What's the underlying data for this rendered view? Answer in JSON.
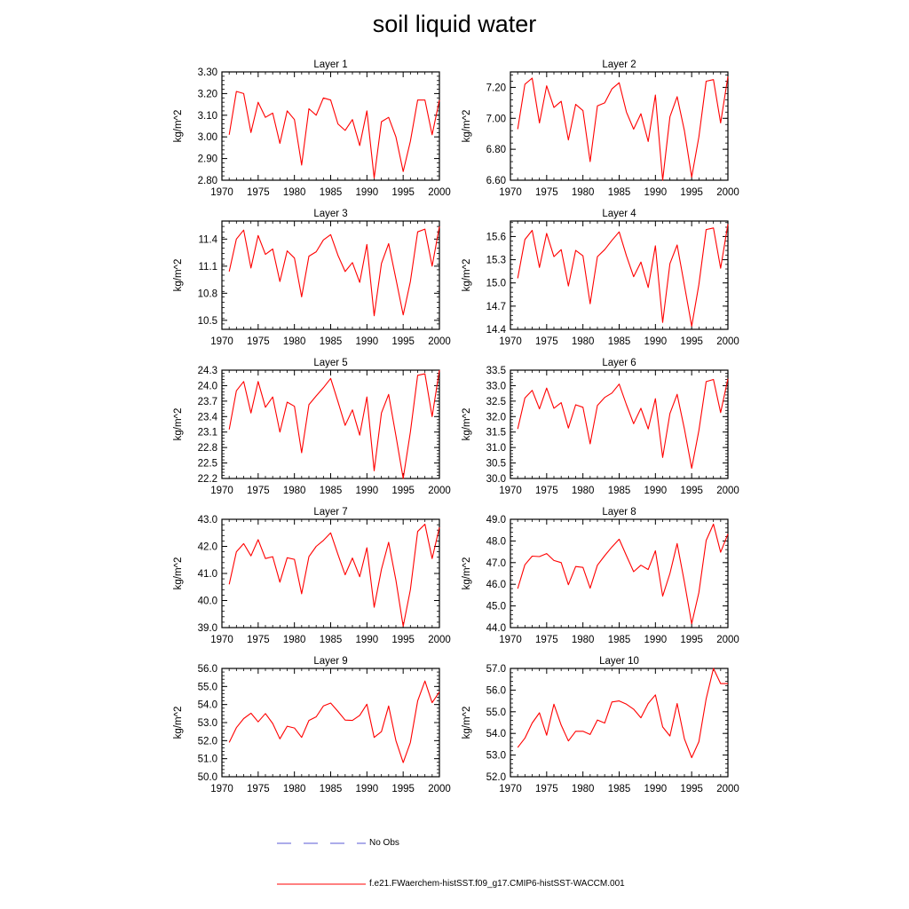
{
  "title": "soil liquid water",
  "legend": {
    "obs_label": "No Obs",
    "obs_color": "#5a5ad6",
    "model_label": "f.e21.FWaerchem-histSST.f09_g17.CMIP6-histSST-WACCM.001",
    "model_color": "#ff0000"
  },
  "chart_data": [
    {
      "type": "line",
      "title": "Layer 1",
      "ylabel": "kg/m^2",
      "xlabel": "",
      "xlim": [
        1970,
        2000
      ],
      "ylim": [
        2.8,
        3.3
      ],
      "xticks": [
        "1970",
        "1975",
        "1980",
        "1985",
        "1990",
        "1995",
        "2000"
      ],
      "yticks": [
        "2.80",
        "2.90",
        "3.00",
        "3.10",
        "3.20",
        "3.30"
      ],
      "series": [
        {
          "x": [
            1971,
            1972,
            1973,
            1974,
            1975,
            1976,
            1977,
            1978,
            1979,
            1980,
            1981,
            1982,
            1983,
            1984,
            1985,
            1986,
            1987,
            1988,
            1989,
            1990,
            1991,
            1992,
            1993,
            1994,
            1995,
            1996,
            1997,
            1998,
            1999,
            2000
          ],
          "values": [
            3.01,
            3.21,
            3.2,
            3.02,
            3.16,
            3.09,
            3.11,
            2.97,
            3.12,
            3.08,
            2.87,
            3.13,
            3.1,
            3.18,
            3.17,
            3.06,
            3.03,
            3.08,
            2.96,
            3.12,
            2.81,
            3.07,
            3.09,
            3.0,
            2.84,
            2.98,
            3.17,
            3.17,
            3.01,
            3.17
          ]
        }
      ]
    },
    {
      "type": "line",
      "title": "Layer 2",
      "ylabel": "kg/m^2",
      "xlabel": "",
      "xlim": [
        1970,
        2000
      ],
      "ylim": [
        6.6,
        7.3
      ],
      "xticks": [
        "1970",
        "1975",
        "1980",
        "1985",
        "1990",
        "1995",
        "2000"
      ],
      "yticks": [
        "6.60",
        "6.80",
        "7.00",
        "7.20"
      ],
      "series": [
        {
          "x": [
            1971,
            1972,
            1973,
            1974,
            1975,
            1976,
            1977,
            1978,
            1979,
            1980,
            1981,
            1982,
            1983,
            1984,
            1985,
            1986,
            1987,
            1988,
            1989,
            1990,
            1991,
            1992,
            1993,
            1994,
            1995,
            1996,
            1997,
            1998,
            1999,
            2000
          ],
          "values": [
            6.93,
            7.22,
            7.26,
            6.97,
            7.21,
            7.07,
            7.11,
            6.86,
            7.09,
            7.05,
            6.72,
            7.08,
            7.1,
            7.19,
            7.23,
            7.04,
            6.93,
            7.03,
            6.85,
            7.15,
            6.6,
            7.01,
            7.14,
            6.92,
            6.62,
            6.88,
            7.24,
            7.25,
            6.97,
            7.27
          ]
        }
      ]
    },
    {
      "type": "line",
      "title": "Layer 3",
      "ylabel": "kg/m^2",
      "xlabel": "",
      "xlim": [
        1970,
        2000
      ],
      "ylim": [
        10.4,
        11.6
      ],
      "xticks": [
        "1970",
        "1975",
        "1980",
        "1985",
        "1990",
        "1995",
        "2000"
      ],
      "yticks": [
        "10.5",
        "10.8",
        "11.1",
        "11.4"
      ],
      "series": [
        {
          "x": [
            1971,
            1972,
            1973,
            1974,
            1975,
            1976,
            1977,
            1978,
            1979,
            1980,
            1981,
            1982,
            1983,
            1984,
            1985,
            1986,
            1987,
            1988,
            1989,
            1990,
            1991,
            1992,
            1993,
            1994,
            1995,
            1996,
            1997,
            1998,
            1999,
            2000
          ],
          "values": [
            11.04,
            11.4,
            11.5,
            11.08,
            11.44,
            11.23,
            11.29,
            10.93,
            11.27,
            11.19,
            10.76,
            11.21,
            11.26,
            11.39,
            11.45,
            11.22,
            11.04,
            11.14,
            10.92,
            11.34,
            10.55,
            11.13,
            11.35,
            10.96,
            10.56,
            10.93,
            11.48,
            11.51,
            11.1,
            11.54
          ]
        }
      ]
    },
    {
      "type": "line",
      "title": "Layer 4",
      "ylabel": "kg/m^2",
      "xlabel": "",
      "xlim": [
        1970,
        2000
      ],
      "ylim": [
        14.4,
        15.8
      ],
      "xticks": [
        "1970",
        "1975",
        "1980",
        "1985",
        "1990",
        "1995",
        "2000"
      ],
      "yticks": [
        "14.4",
        "14.7",
        "15.0",
        "15.3",
        "15.6"
      ],
      "series": [
        {
          "x": [
            1971,
            1972,
            1973,
            1974,
            1975,
            1976,
            1977,
            1978,
            1979,
            1980,
            1981,
            1982,
            1983,
            1984,
            1985,
            1986,
            1987,
            1988,
            1989,
            1990,
            1991,
            1992,
            1993,
            1994,
            1995,
            1996,
            1997,
            1998,
            1999,
            2000
          ],
          "values": [
            15.06,
            15.56,
            15.68,
            15.2,
            15.64,
            15.34,
            15.43,
            14.96,
            15.42,
            15.35,
            14.73,
            15.34,
            15.43,
            15.55,
            15.66,
            15.35,
            15.08,
            15.27,
            14.94,
            15.48,
            14.49,
            15.25,
            15.49,
            14.97,
            14.44,
            14.98,
            15.69,
            15.71,
            15.19,
            15.76
          ]
        }
      ]
    },
    {
      "type": "line",
      "title": "Layer 5",
      "ylabel": "kg/m^2",
      "xlabel": "",
      "xlim": [
        1970,
        2000
      ],
      "ylim": [
        22.2,
        24.3
      ],
      "xticks": [
        "1970",
        "1975",
        "1980",
        "1985",
        "1990",
        "1995",
        "2000"
      ],
      "yticks": [
        "22.2",
        "22.5",
        "22.8",
        "23.1",
        "23.4",
        "23.7",
        "24.0",
        "24.3"
      ],
      "series": [
        {
          "x": [
            1971,
            1972,
            1973,
            1974,
            1975,
            1976,
            1977,
            1978,
            1979,
            1980,
            1981,
            1982,
            1983,
            1984,
            1985,
            1986,
            1987,
            1988,
            1989,
            1990,
            1991,
            1992,
            1993,
            1994,
            1995,
            1996,
            1997,
            1998,
            1999,
            2000
          ],
          "values": [
            23.15,
            23.9,
            24.08,
            23.47,
            24.08,
            23.58,
            23.78,
            23.1,
            23.68,
            23.6,
            22.7,
            23.63,
            23.8,
            23.96,
            24.14,
            23.69,
            23.23,
            23.53,
            23.04,
            23.78,
            22.35,
            23.47,
            23.83,
            23.03,
            22.2,
            23.1,
            24.2,
            24.23,
            23.4,
            24.3
          ]
        }
      ]
    },
    {
      "type": "line",
      "title": "Layer 6",
      "ylabel": "kg/m^2",
      "xlabel": "",
      "xlim": [
        1970,
        2000
      ],
      "ylim": [
        30.0,
        33.5
      ],
      "xticks": [
        "1970",
        "1975",
        "1980",
        "1985",
        "1990",
        "1995",
        "2000"
      ],
      "yticks": [
        "30.0",
        "30.5",
        "31.0",
        "31.5",
        "32.0",
        "32.5",
        "33.0",
        "33.5"
      ],
      "series": [
        {
          "x": [
            1971,
            1972,
            1973,
            1974,
            1975,
            1976,
            1977,
            1978,
            1979,
            1980,
            1981,
            1982,
            1983,
            1984,
            1985,
            1986,
            1987,
            1988,
            1989,
            1990,
            1991,
            1992,
            1993,
            1994,
            1995,
            1996,
            1997,
            1998,
            1999,
            2000
          ],
          "values": [
            31.6,
            32.6,
            32.85,
            32.25,
            32.92,
            32.27,
            32.45,
            31.63,
            32.38,
            32.3,
            31.12,
            32.36,
            32.62,
            32.76,
            33.05,
            32.38,
            31.77,
            32.27,
            31.6,
            32.58,
            30.68,
            32.1,
            32.72,
            31.6,
            30.33,
            31.55,
            33.13,
            33.2,
            32.13,
            33.22
          ]
        }
      ]
    },
    {
      "type": "line",
      "title": "Layer 7",
      "ylabel": "kg/m^2",
      "xlabel": "",
      "xlim": [
        1970,
        2000
      ],
      "ylim": [
        39.0,
        43.0
      ],
      "xticks": [
        "1970",
        "1975",
        "1980",
        "1985",
        "1990",
        "1995",
        "2000"
      ],
      "yticks": [
        "39.0",
        "40.0",
        "41.0",
        "42.0",
        "43.0"
      ],
      "series": [
        {
          "x": [
            1971,
            1972,
            1973,
            1974,
            1975,
            1976,
            1977,
            1978,
            1979,
            1980,
            1981,
            1982,
            1983,
            1984,
            1985,
            1986,
            1987,
            1988,
            1989,
            1990,
            1991,
            1992,
            1993,
            1994,
            1995,
            1996,
            1997,
            1998,
            1999,
            2000
          ],
          "values": [
            40.6,
            41.8,
            42.1,
            41.65,
            42.25,
            41.55,
            41.62,
            40.68,
            41.58,
            41.52,
            40.25,
            41.62,
            42.0,
            42.22,
            42.5,
            41.7,
            40.95,
            41.57,
            40.88,
            41.95,
            39.75,
            41.15,
            42.15,
            40.75,
            39.05,
            40.4,
            42.55,
            42.82,
            41.55,
            42.7
          ]
        }
      ]
    },
    {
      "type": "line",
      "title": "Layer 8",
      "ylabel": "kg/m^2",
      "xlabel": "",
      "xlim": [
        1970,
        2000
      ],
      "ylim": [
        44.0,
        49.0
      ],
      "xticks": [
        "1970",
        "1975",
        "1980",
        "1985",
        "1990",
        "1995",
        "2000"
      ],
      "yticks": [
        "44.0",
        "45.0",
        "46.0",
        "47.0",
        "48.0",
        "49.0"
      ],
      "series": [
        {
          "x": [
            1971,
            1972,
            1973,
            1974,
            1975,
            1976,
            1977,
            1978,
            1979,
            1980,
            1981,
            1982,
            1983,
            1984,
            1985,
            1986,
            1987,
            1988,
            1989,
            1990,
            1991,
            1992,
            1993,
            1994,
            1995,
            1996,
            1997,
            1998,
            1999,
            2000
          ],
          "values": [
            45.8,
            46.9,
            47.3,
            47.28,
            47.42,
            47.1,
            47.0,
            45.98,
            46.82,
            46.78,
            45.82,
            46.88,
            47.32,
            47.72,
            48.08,
            47.32,
            46.58,
            46.88,
            46.68,
            47.55,
            45.45,
            46.5,
            47.88,
            46.1,
            44.18,
            45.62,
            48.02,
            48.78,
            47.48,
            48.32
          ]
        }
      ]
    },
    {
      "type": "line",
      "title": "Layer 9",
      "ylabel": "kg/m^2",
      "xlabel": "",
      "xlim": [
        1970,
        2000
      ],
      "ylim": [
        50.0,
        56.0
      ],
      "xticks": [
        "1970",
        "1975",
        "1980",
        "1985",
        "1990",
        "1995",
        "2000"
      ],
      "yticks": [
        "50.0",
        "51.0",
        "52.0",
        "53.0",
        "54.0",
        "55.0",
        "56.0"
      ],
      "series": [
        {
          "x": [
            1971,
            1972,
            1973,
            1974,
            1975,
            1976,
            1977,
            1978,
            1979,
            1980,
            1981,
            1982,
            1983,
            1984,
            1985,
            1986,
            1987,
            1988,
            1989,
            1990,
            1991,
            1992,
            1993,
            1994,
            1995,
            1996,
            1997,
            1998,
            1999,
            2000
          ],
          "values": [
            51.9,
            52.72,
            53.22,
            53.52,
            53.04,
            53.5,
            52.95,
            52.1,
            52.8,
            52.7,
            52.18,
            53.12,
            53.32,
            53.92,
            54.08,
            53.62,
            53.14,
            53.12,
            53.4,
            54.02,
            52.18,
            52.5,
            53.92,
            52.0,
            50.78,
            51.9,
            54.2,
            55.3,
            54.1,
            54.7
          ]
        }
      ]
    },
    {
      "type": "line",
      "title": "Layer 10",
      "ylabel": "kg/m^2",
      "xlabel": "",
      "xlim": [
        1970,
        2000
      ],
      "ylim": [
        52.0,
        57.0
      ],
      "xticks": [
        "1970",
        "1975",
        "1980",
        "1985",
        "1990",
        "1995",
        "2000"
      ],
      "yticks": [
        "52.0",
        "53.0",
        "54.0",
        "55.0",
        "56.0",
        "57.0"
      ],
      "series": [
        {
          "x": [
            1971,
            1972,
            1973,
            1974,
            1975,
            1976,
            1977,
            1978,
            1979,
            1980,
            1981,
            1982,
            1983,
            1984,
            1985,
            1986,
            1987,
            1988,
            1989,
            1990,
            1991,
            1992,
            1993,
            1994,
            1995,
            1996,
            1997,
            1998,
            1999,
            2000
          ],
          "values": [
            53.35,
            53.78,
            54.48,
            54.95,
            53.92,
            55.35,
            54.38,
            53.65,
            54.1,
            54.1,
            53.95,
            54.62,
            54.48,
            55.45,
            55.5,
            55.35,
            55.12,
            54.72,
            55.38,
            55.78,
            54.3,
            53.88,
            55.38,
            53.75,
            52.88,
            53.62,
            55.6,
            57.0,
            56.3,
            56.3
          ]
        }
      ]
    }
  ]
}
